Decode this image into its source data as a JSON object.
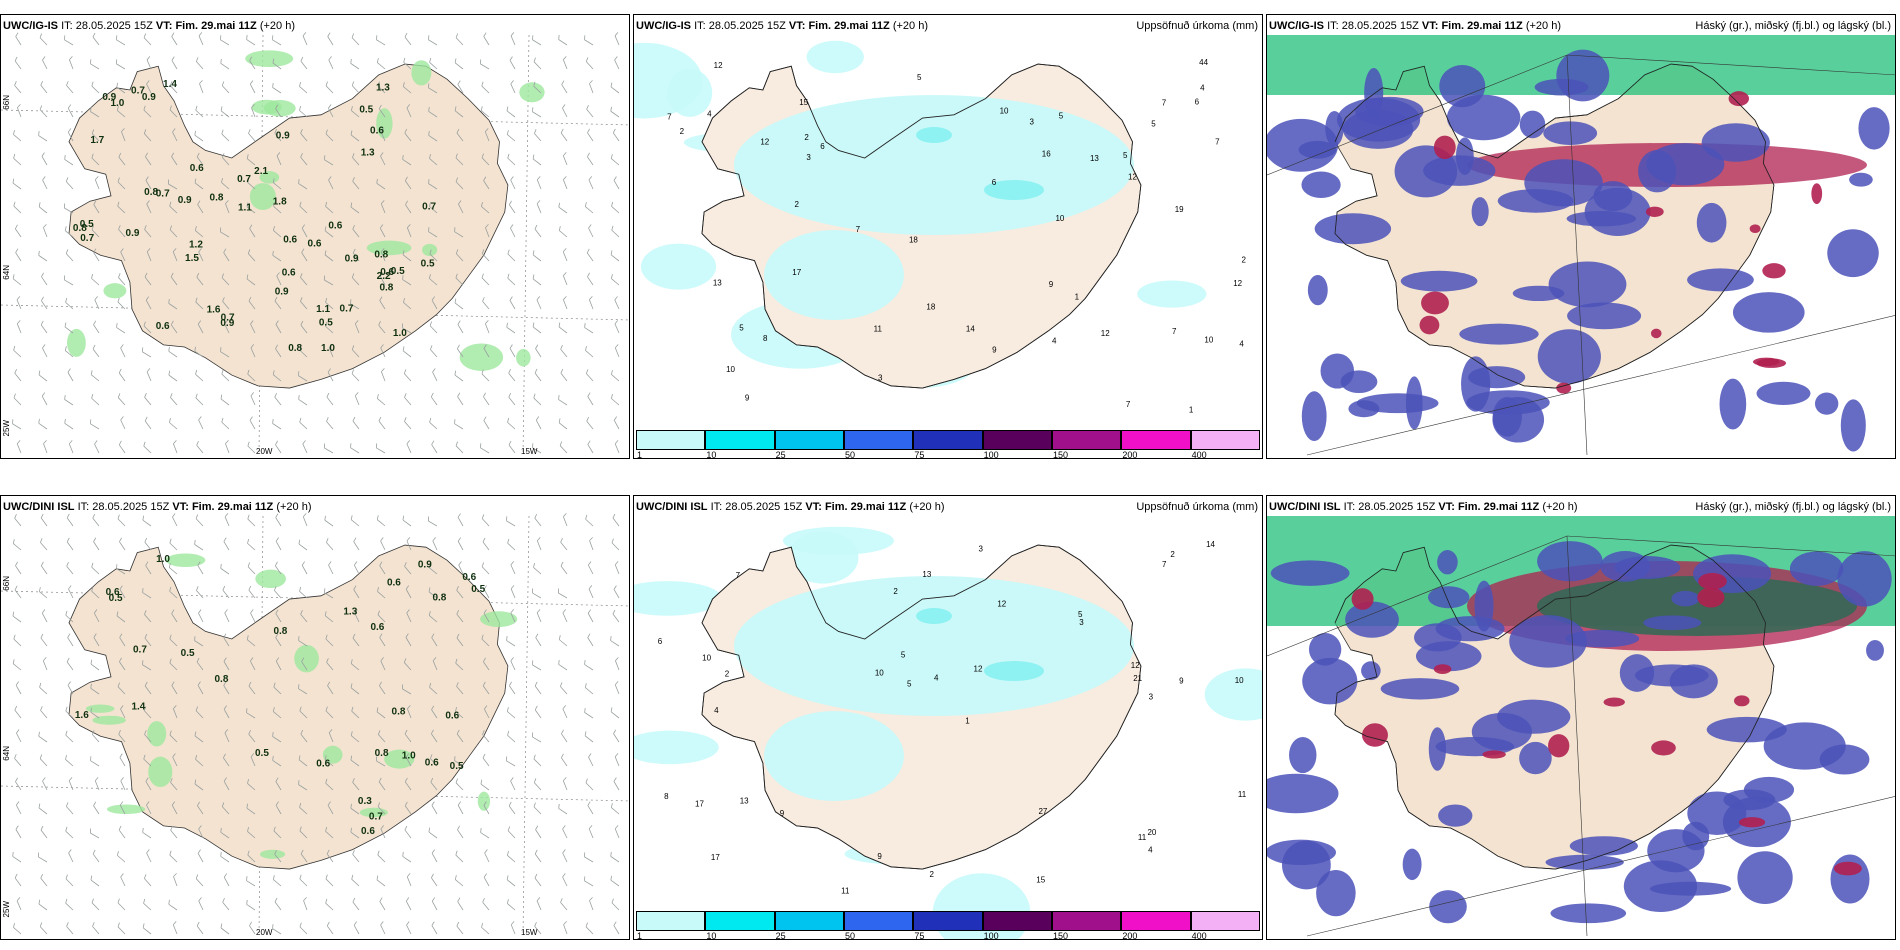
{
  "colors": {
    "land": "#f3e3d0",
    "precip_light": "#c8f9f9",
    "precip_mid": "#8ff2f2",
    "low_cloud": "#4b52b8",
    "mid_cloud": "#22c07a",
    "high_cloud": "#b02050",
    "wind_barb": "#9aa0a0",
    "snow_green": "#9ee79e"
  },
  "rows": [
    {
      "model": "UWC/IG-IS",
      "it_label": "IT:",
      "it_value": "28.05.2025 15Z",
      "vt_label": "VT:",
      "vt_value": "Fim. 29.mai 11Z",
      "lead": "(+20 h)",
      "precip_title": "Uppsöfnuð úrkoma (mm)",
      "cloud_title": "Háský (gr.), miðský (fj.bl.) og lágský (bl.)",
      "snow_values": [
        "0.5",
        "1.5",
        "0.9",
        "0.9",
        "0.6",
        "0.5",
        "0.6",
        "0.7",
        "0.9",
        "0.9",
        "0.7",
        "0.5",
        "0.9",
        "0.8",
        "1.0",
        "0.8",
        "0.7",
        "0.8",
        "0.6",
        "0.7",
        "1.2",
        "0.6",
        "0.5",
        "1.6",
        "0.9",
        "0.7",
        "0.6",
        "0.5",
        "1.3",
        "0.8",
        "1.1",
        "1.0",
        "0.9",
        "1.7",
        "0.7",
        "1.8",
        "1.3",
        "1.4",
        "0.8",
        "0.6",
        "1.1",
        "0.7",
        "0.6",
        "0.9",
        "1.0",
        "2.1",
        "2.2",
        "0.8",
        "0.6"
      ],
      "precip_values": [
        "1",
        "2",
        "12",
        "10",
        "2",
        "7",
        "5",
        "4",
        "7",
        "6",
        "10",
        "14",
        "17",
        "13",
        "12",
        "18",
        "44",
        "12",
        "5",
        "13",
        "4",
        "7",
        "7",
        "6",
        "3",
        "4",
        "2",
        "5",
        "18",
        "11",
        "6",
        "9",
        "3",
        "12",
        "7",
        "15",
        "5",
        "12",
        "9",
        "10",
        "8",
        "7",
        "5",
        "4",
        "9",
        "10",
        "16",
        "19",
        "2",
        "1",
        "3"
      ]
    },
    {
      "model": "UWC/DINI ISL",
      "it_label": "IT:",
      "it_value": "28.05.2025 15Z",
      "vt_label": "VT:",
      "vt_value": "Fim. 29.mai 11Z",
      "lead": "(+20 h)",
      "precip_title": "Uppsöfnuð úrkoma (mm)",
      "cloud_title": "Háský (gr.), miðský (fj.bl.) og lágský (bl.)",
      "snow_values": [
        "0.8",
        "0.5",
        "0.8",
        "1.0",
        "0.3",
        "0.6",
        "0.6",
        "0.5",
        "0.6",
        "0.7",
        "0.8",
        "0.6",
        "0.9",
        "0.6",
        "0.5",
        "1.4",
        "1.6",
        "0.6",
        "0.8",
        "0.5",
        "0.6",
        "1.3",
        "0.5",
        "0.7",
        "1.0",
        "0.8",
        "0.6"
      ],
      "precip_values": [
        "2",
        "4",
        "10",
        "9",
        "8",
        "10",
        "5",
        "21",
        "20",
        "17",
        "11",
        "12",
        "13",
        "10",
        "27",
        "11",
        "12",
        "9",
        "14",
        "13",
        "17",
        "11",
        "15",
        "7",
        "2",
        "3",
        "4",
        "5",
        "6",
        "1",
        "2",
        "3",
        "12",
        "7",
        "3",
        "9",
        "5",
        "4",
        "2"
      ]
    }
  ],
  "colorbar": {
    "ticks": [
      "1",
      "10",
      "25",
      "50",
      "75",
      "100",
      "150",
      "200",
      "400"
    ],
    "colors": [
      "#c8fafa",
      "#00e8f0",
      "#00c4f0",
      "#2e66f0",
      "#2030b8",
      "#58005c",
      "#a0108a",
      "#f010c8",
      "#f4b0f4"
    ]
  },
  "graticule": {
    "lon_labels": [
      "20W",
      "15W"
    ],
    "lat_labels": [
      "66N",
      "64N",
      "25W"
    ]
  }
}
